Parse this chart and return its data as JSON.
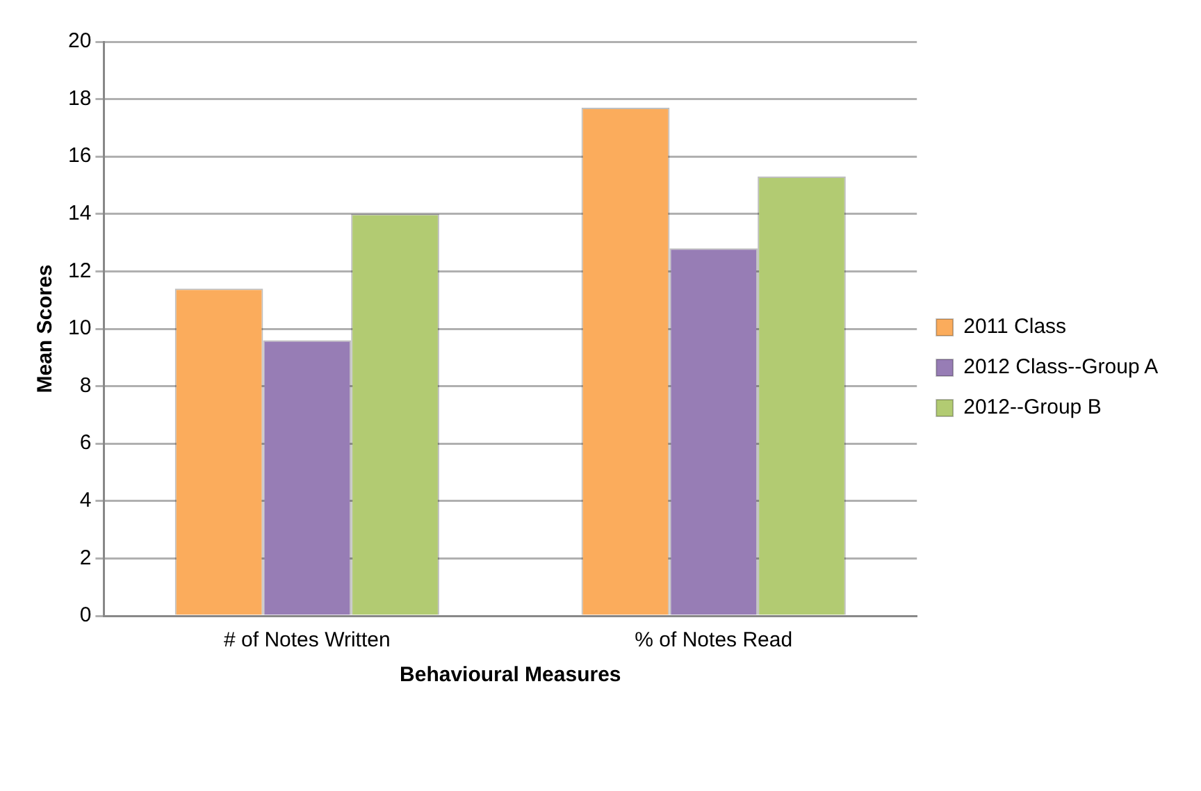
{
  "chart_data": {
    "type": "bar",
    "xlabel": "Behavioural Measures",
    "ylabel": "Mean Scores",
    "categories": [
      "# of Notes Written",
      "% of Notes Read"
    ],
    "series": [
      {
        "name": "2011 Class",
        "color": "#fbac5c",
        "values": [
          11.4,
          17.7
        ]
      },
      {
        "name": "2012 Class--Group A",
        "color": "#977db5",
        "values": [
          9.6,
          12.8
        ]
      },
      {
        "name": "2012--Group B",
        "color": "#b2cb72",
        "values": [
          14.0,
          15.3
        ]
      }
    ],
    "ylim": [
      0,
      20
    ],
    "yticks": [
      0,
      2,
      4,
      6,
      8,
      10,
      12,
      14,
      16,
      18,
      20
    ],
    "grid": "y",
    "legend": "right"
  }
}
